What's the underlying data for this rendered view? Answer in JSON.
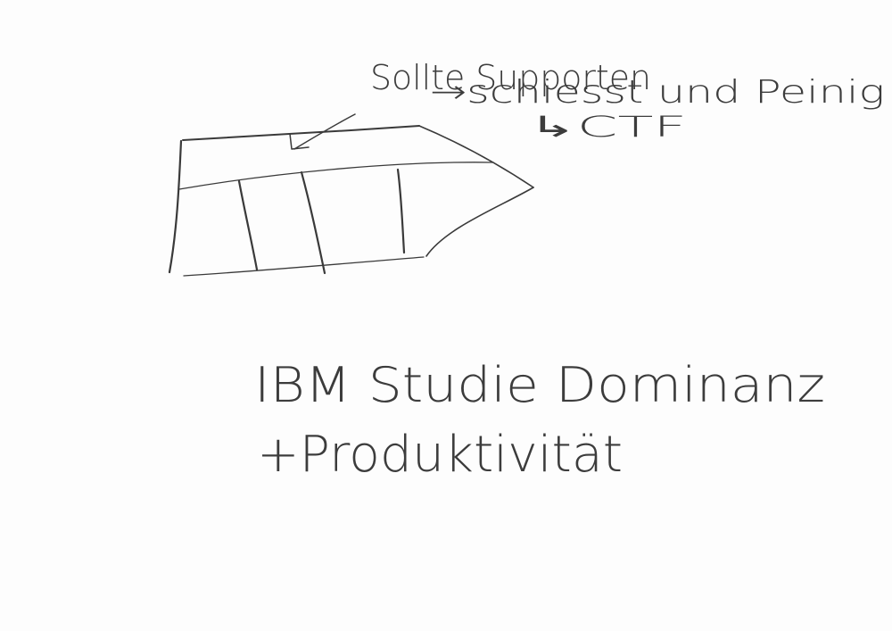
{
  "colors": {
    "ink": "#3a3a3a",
    "background": "#fdfdfd"
  },
  "notes": {
    "line1": "Sollte Supporten",
    "line2": "→schiesst und Peinig",
    "line3": "↳CTF"
  },
  "caption": {
    "line1": "IBM Studie Dominanz",
    "line2": "+Produktivität"
  }
}
